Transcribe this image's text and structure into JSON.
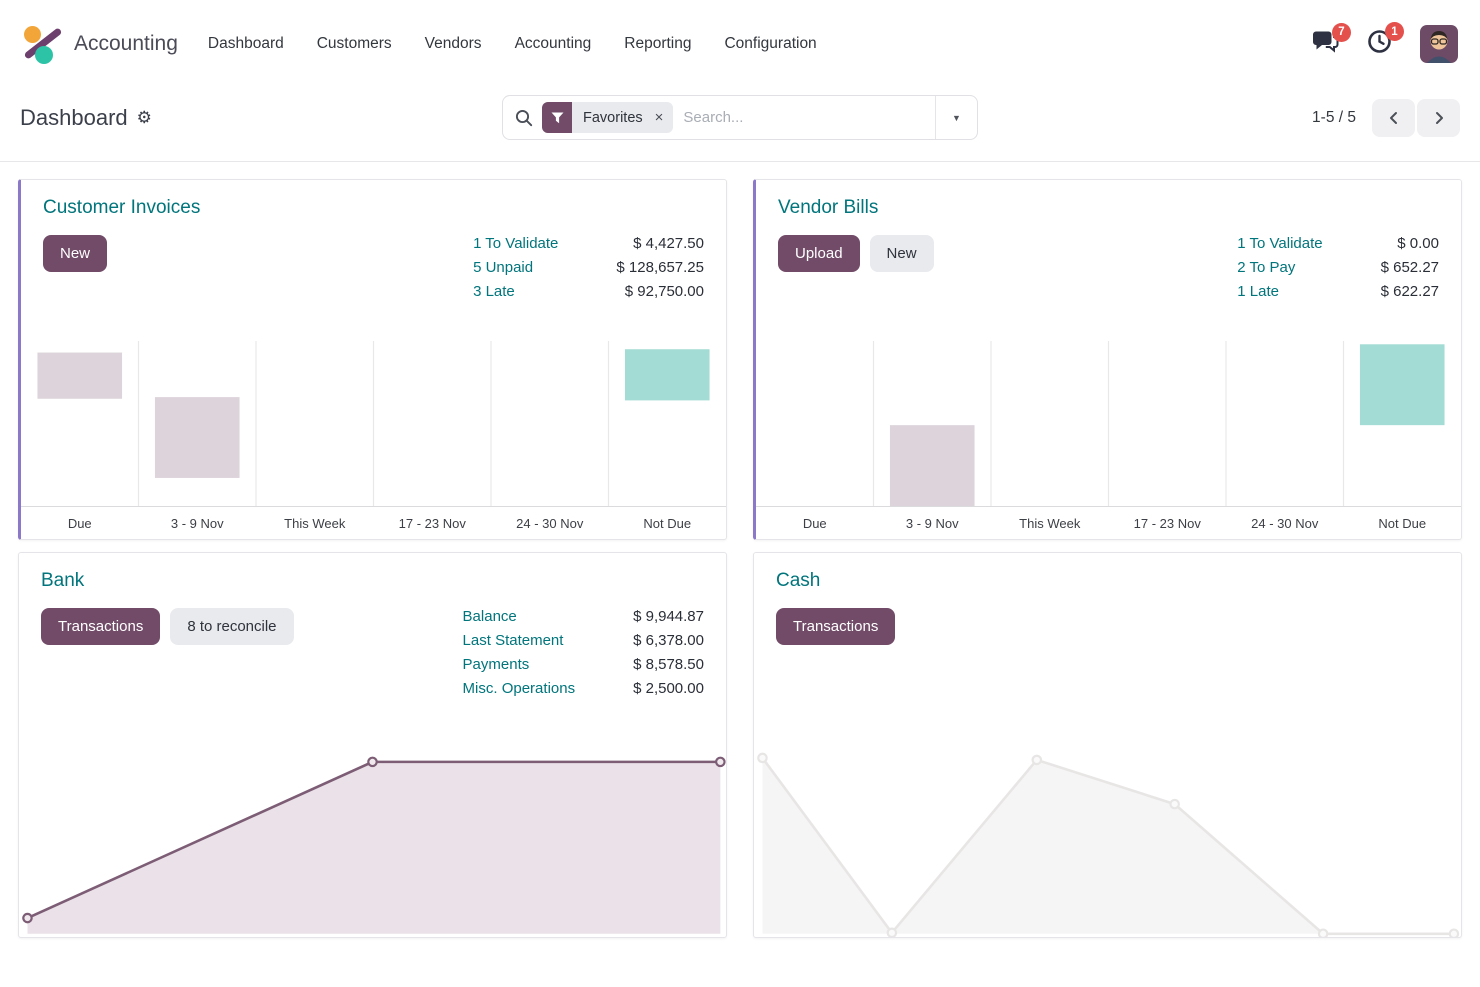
{
  "colors": {
    "accent": "#714B67",
    "teal": "#01757C",
    "stripe": "#8C78C8",
    "badge": "#E4504C",
    "bar_muted": "#DCD4DA",
    "bar_teal": "#A2DCD4",
    "line_bank": "#7D5D75",
    "line_bank_fill": "#EAE2E8",
    "marker_bank_fill": "#EFE8ED",
    "line_cash": "#E8E5E5",
    "line_cash_fill": "#F6F5F5",
    "marker_cash_fill": "#FBFAFA",
    "grid": "#E8E8E8",
    "axis": "#DBDBDE"
  },
  "nav": {
    "app_name": "Accounting",
    "items": [
      "Dashboard",
      "Customers",
      "Vendors",
      "Accounting",
      "Reporting",
      "Configuration"
    ],
    "messages_badge": "7",
    "activities_badge": "1"
  },
  "control_panel": {
    "title": "Dashboard",
    "settings_glyph": "⚙",
    "facet_label": "Favorites",
    "facet_clear_glyph": "×",
    "search_placeholder": "Search...",
    "expand_glyph": "▼",
    "pager_value": "1-5 / 5"
  },
  "cards": {
    "customer_invoices": {
      "title": "Customer Invoices",
      "buttons": [
        {
          "label": "New",
          "style": "primary"
        }
      ],
      "stats": [
        {
          "label": "1 To Validate",
          "value": "$ 4,427.50"
        },
        {
          "label": "5 Unpaid",
          "value": "$ 128,657.25"
        },
        {
          "label": "3 Late",
          "value": "$ 92,750.00"
        }
      ]
    },
    "vendor_bills": {
      "title": "Vendor Bills",
      "buttons": [
        {
          "label": "Upload",
          "style": "primary"
        },
        {
          "label": "New",
          "style": "secondary"
        }
      ],
      "stats": [
        {
          "label": "1 To Validate",
          "value": "$ 0.00"
        },
        {
          "label": "2 To Pay",
          "value": "$ 652.27"
        },
        {
          "label": "1 Late",
          "value": "$ 622.27"
        }
      ]
    },
    "bank": {
      "title": "Bank",
      "buttons": [
        {
          "label": "Transactions",
          "style": "primary"
        },
        {
          "label": "8 to reconcile",
          "style": "secondary"
        }
      ],
      "stats": [
        {
          "label": "Balance",
          "value": "$ 9,944.87"
        },
        {
          "label": "Last Statement",
          "value": "$ 6,378.00"
        },
        {
          "label": "Payments",
          "value": "$ 8,578.50"
        },
        {
          "label": "Misc. Operations",
          "value": "$ 2,500.00"
        }
      ]
    },
    "cash": {
      "title": "Cash",
      "buttons": [
        {
          "label": "Transactions",
          "style": "primary"
        }
      ],
      "stats": []
    }
  },
  "chart_data": [
    {
      "id": "customer_invoices_chart",
      "type": "bar",
      "title": "Customer Invoices due-date distribution",
      "categories": [
        "Due",
        "3 - 9 Nov",
        "This Week",
        "17 - 23 Nov",
        "24 - 30 Nov",
        "Not Due"
      ],
      "value_note": "no y-axis labels shown; from/to are fractions of plot height (floating range bars)",
      "bars": [
        {
          "category": "Due",
          "from": 0.65,
          "to": 0.93,
          "color": "muted"
        },
        {
          "category": "3 - 9 Nov",
          "from": 0.17,
          "to": 0.66,
          "color": "muted"
        },
        {
          "category": "Not Due",
          "from": 0.64,
          "to": 0.95,
          "color": "teal"
        }
      ],
      "grid": "vertical-separators",
      "legend": false
    },
    {
      "id": "vendor_bills_chart",
      "type": "bar",
      "title": "Vendor Bills due-date distribution",
      "categories": [
        "Due",
        "3 - 9 Nov",
        "This Week",
        "17 - 23 Nov",
        "24 - 30 Nov",
        "Not Due"
      ],
      "value_note": "no y-axis labels shown; from/to are fractions of plot height (floating range bars)",
      "bars": [
        {
          "category": "3 - 9 Nov",
          "from": 0.0,
          "to": 0.49,
          "color": "muted"
        },
        {
          "category": "Not Due",
          "from": 0.49,
          "to": 0.98,
          "color": "teal"
        }
      ],
      "grid": "vertical-separators",
      "legend": false
    },
    {
      "id": "bank_chart",
      "type": "area",
      "title": "Bank balance trend",
      "value_note": "no axis labels shown; x and y are fractions of plot width/height",
      "points": [
        {
          "x": 0.012,
          "y": 0.095
        },
        {
          "x": 0.5,
          "y": 0.89
        },
        {
          "x": 0.992,
          "y": 0.89
        }
      ],
      "color_key": "bank",
      "markers": true,
      "legend": false
    },
    {
      "id": "cash_chart",
      "type": "area",
      "title": "Cash balance trend",
      "value_note": "no axis labels shown; x and y are fractions of plot width/height",
      "points": [
        {
          "x": 0.012,
          "y": 0.91
        },
        {
          "x": 0.195,
          "y": 0.02
        },
        {
          "x": 0.4,
          "y": 0.9
        },
        {
          "x": 0.595,
          "y": 0.675
        },
        {
          "x": 0.805,
          "y": 0.015
        },
        {
          "x": 0.99,
          "y": 0.015
        }
      ],
      "color_key": "cash",
      "markers": true,
      "legend": false
    }
  ]
}
